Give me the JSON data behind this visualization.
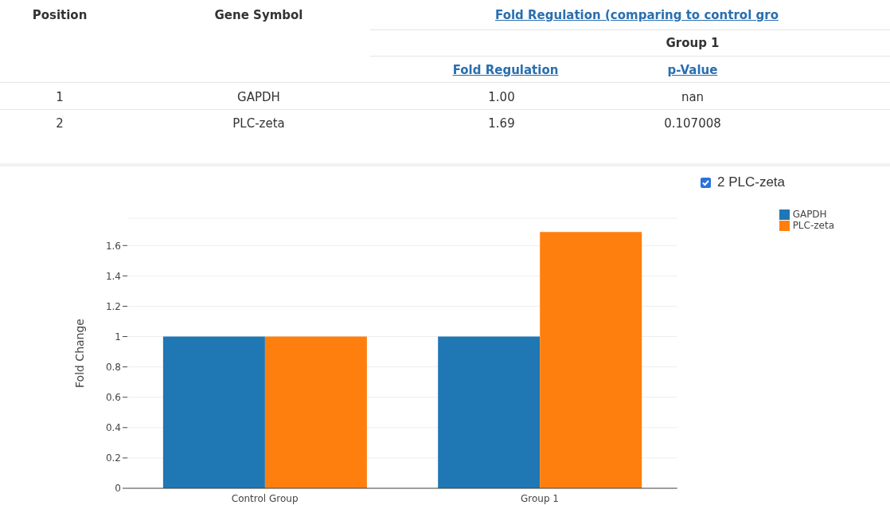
{
  "chart_data": {
    "type": "bar",
    "categories": [
      "Control Group",
      "Group 1"
    ],
    "series": [
      {
        "name": "GAPDH",
        "color": "#1f77b4",
        "values": [
          1,
          1
        ]
      },
      {
        "name": "PLC-zeta",
        "color": "#ff7f0e",
        "values": [
          1,
          1.69
        ]
      }
    ],
    "ylabel": "Fold Change",
    "ylim": [
      0,
      1.78
    ],
    "yticks": [
      0,
      0.2,
      0.4,
      0.6,
      0.8,
      {
        "value": 1,
        "label": "1"
      },
      1.2,
      1.4,
      1.6
    ],
    "grid": "y",
    "legend": "top right",
    "annotations": [
      "Position",
      "Gene Symbol",
      "Fold Regulation (comparing to control gro",
      "Group 1",
      "Fold Regulation",
      "p-Value",
      "1",
      "GAPDH",
      "1.00",
      "nan",
      "2",
      "PLC-zeta",
      "1.69",
      "0.107008",
      "2 PLC-zeta"
    ]
  }
}
